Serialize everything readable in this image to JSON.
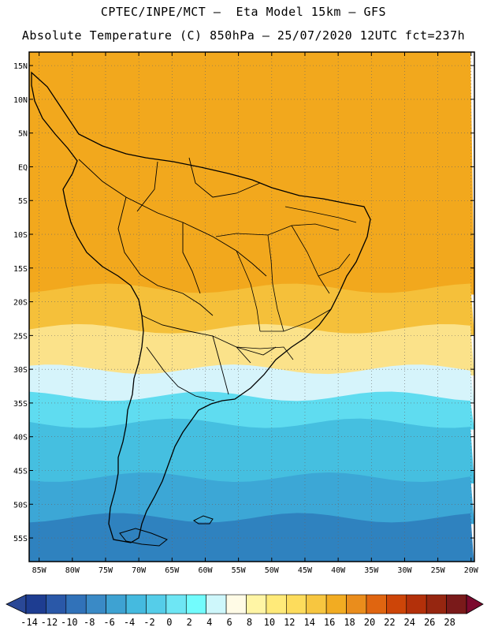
{
  "header": {
    "line1": "CPTEC/INPE/MCT –  Eta Model 15km – GFS",
    "line2": "Absolute Temperature (C) 850hPa – 25/07/2020 12UTC fct=237h"
  },
  "map": {
    "projection": "cylindrical lat-lon",
    "lon_range": [
      -86.5,
      -19.5
    ],
    "lat_range": [
      -58.5,
      17
    ],
    "lat_ticks": [
      {
        "lat": 15,
        "label": "15N"
      },
      {
        "lat": 10,
        "label": "10N"
      },
      {
        "lat": 5,
        "label": "5N"
      },
      {
        "lat": 0,
        "label": "EQ"
      },
      {
        "lat": -5,
        "label": "5S"
      },
      {
        "lat": -10,
        "label": "10S"
      },
      {
        "lat": -15,
        "label": "15S"
      },
      {
        "lat": -20,
        "label": "20S"
      },
      {
        "lat": -25,
        "label": "25S"
      },
      {
        "lat": -30,
        "label": "30S"
      },
      {
        "lat": -35,
        "label": "35S"
      },
      {
        "lat": -40,
        "label": "40S"
      },
      {
        "lat": -45,
        "label": "45S"
      },
      {
        "lat": -50,
        "label": "50S"
      },
      {
        "lat": -55,
        "label": "55S"
      }
    ],
    "lon_ticks": [
      {
        "lon": -85,
        "label": "85W"
      },
      {
        "lon": -80,
        "label": "80W"
      },
      {
        "lon": -75,
        "label": "75W"
      },
      {
        "lon": -70,
        "label": "70W"
      },
      {
        "lon": -65,
        "label": "65W"
      },
      {
        "lon": -60,
        "label": "60W"
      },
      {
        "lon": -55,
        "label": "55W"
      },
      {
        "lon": -50,
        "label": "50W"
      },
      {
        "lon": -45,
        "label": "45W"
      },
      {
        "lon": -40,
        "label": "40W"
      },
      {
        "lon": -35,
        "label": "35W"
      },
      {
        "lon": -30,
        "label": "30W"
      },
      {
        "lon": -25,
        "label": "25W"
      },
      {
        "lon": -20,
        "label": "20W"
      }
    ],
    "gridlines": "dotted",
    "temperature_bands": [
      {
        "lat_range": [
          17,
          -18
        ],
        "color": "#f2a81d"
      },
      {
        "lat_range": [
          -18,
          -24
        ],
        "color": "#f5c03a"
      },
      {
        "lat_range": [
          -24,
          -30
        ],
        "color": "#fbe28a"
      },
      {
        "lat_range": [
          -30,
          -34
        ],
        "color": "#d6f4fb"
      },
      {
        "lat_range": [
          -34,
          -38
        ],
        "color": "#5fdcf0"
      },
      {
        "lat_range": [
          -38,
          -46
        ],
        "color": "#45bfe0"
      },
      {
        "lat_range": [
          -46,
          -52
        ],
        "color": "#3ca7d6"
      },
      {
        "lat_range": [
          -52,
          -58.5
        ],
        "color": "#2f82bf"
      }
    ]
  },
  "colorbar": {
    "labels": [
      "-14",
      "-12",
      "-10",
      "-8",
      "-6",
      "-4",
      "-2",
      "0",
      "2",
      "4",
      "6",
      "8",
      "10",
      "12",
      "14",
      "16",
      "18",
      "20",
      "22",
      "24",
      "26",
      "28"
    ],
    "colors": [
      "#1e3d91",
      "#2a58a8",
      "#3172b9",
      "#3a8ac6",
      "#3ea2d2",
      "#45badf",
      "#55cde9",
      "#6ee6f4",
      "#72fcfd",
      "#cef7fb",
      "#fffbe6",
      "#fff5a5",
      "#ffea79",
      "#fddc5c",
      "#f7c640",
      "#f2ac22",
      "#ea8d1c",
      "#e06510",
      "#cd4508",
      "#b3300a",
      "#962610",
      "#7a1a1a"
    ],
    "low_arrow_color": "#2a4896",
    "high_arrow_color": "#7c0a2e"
  }
}
